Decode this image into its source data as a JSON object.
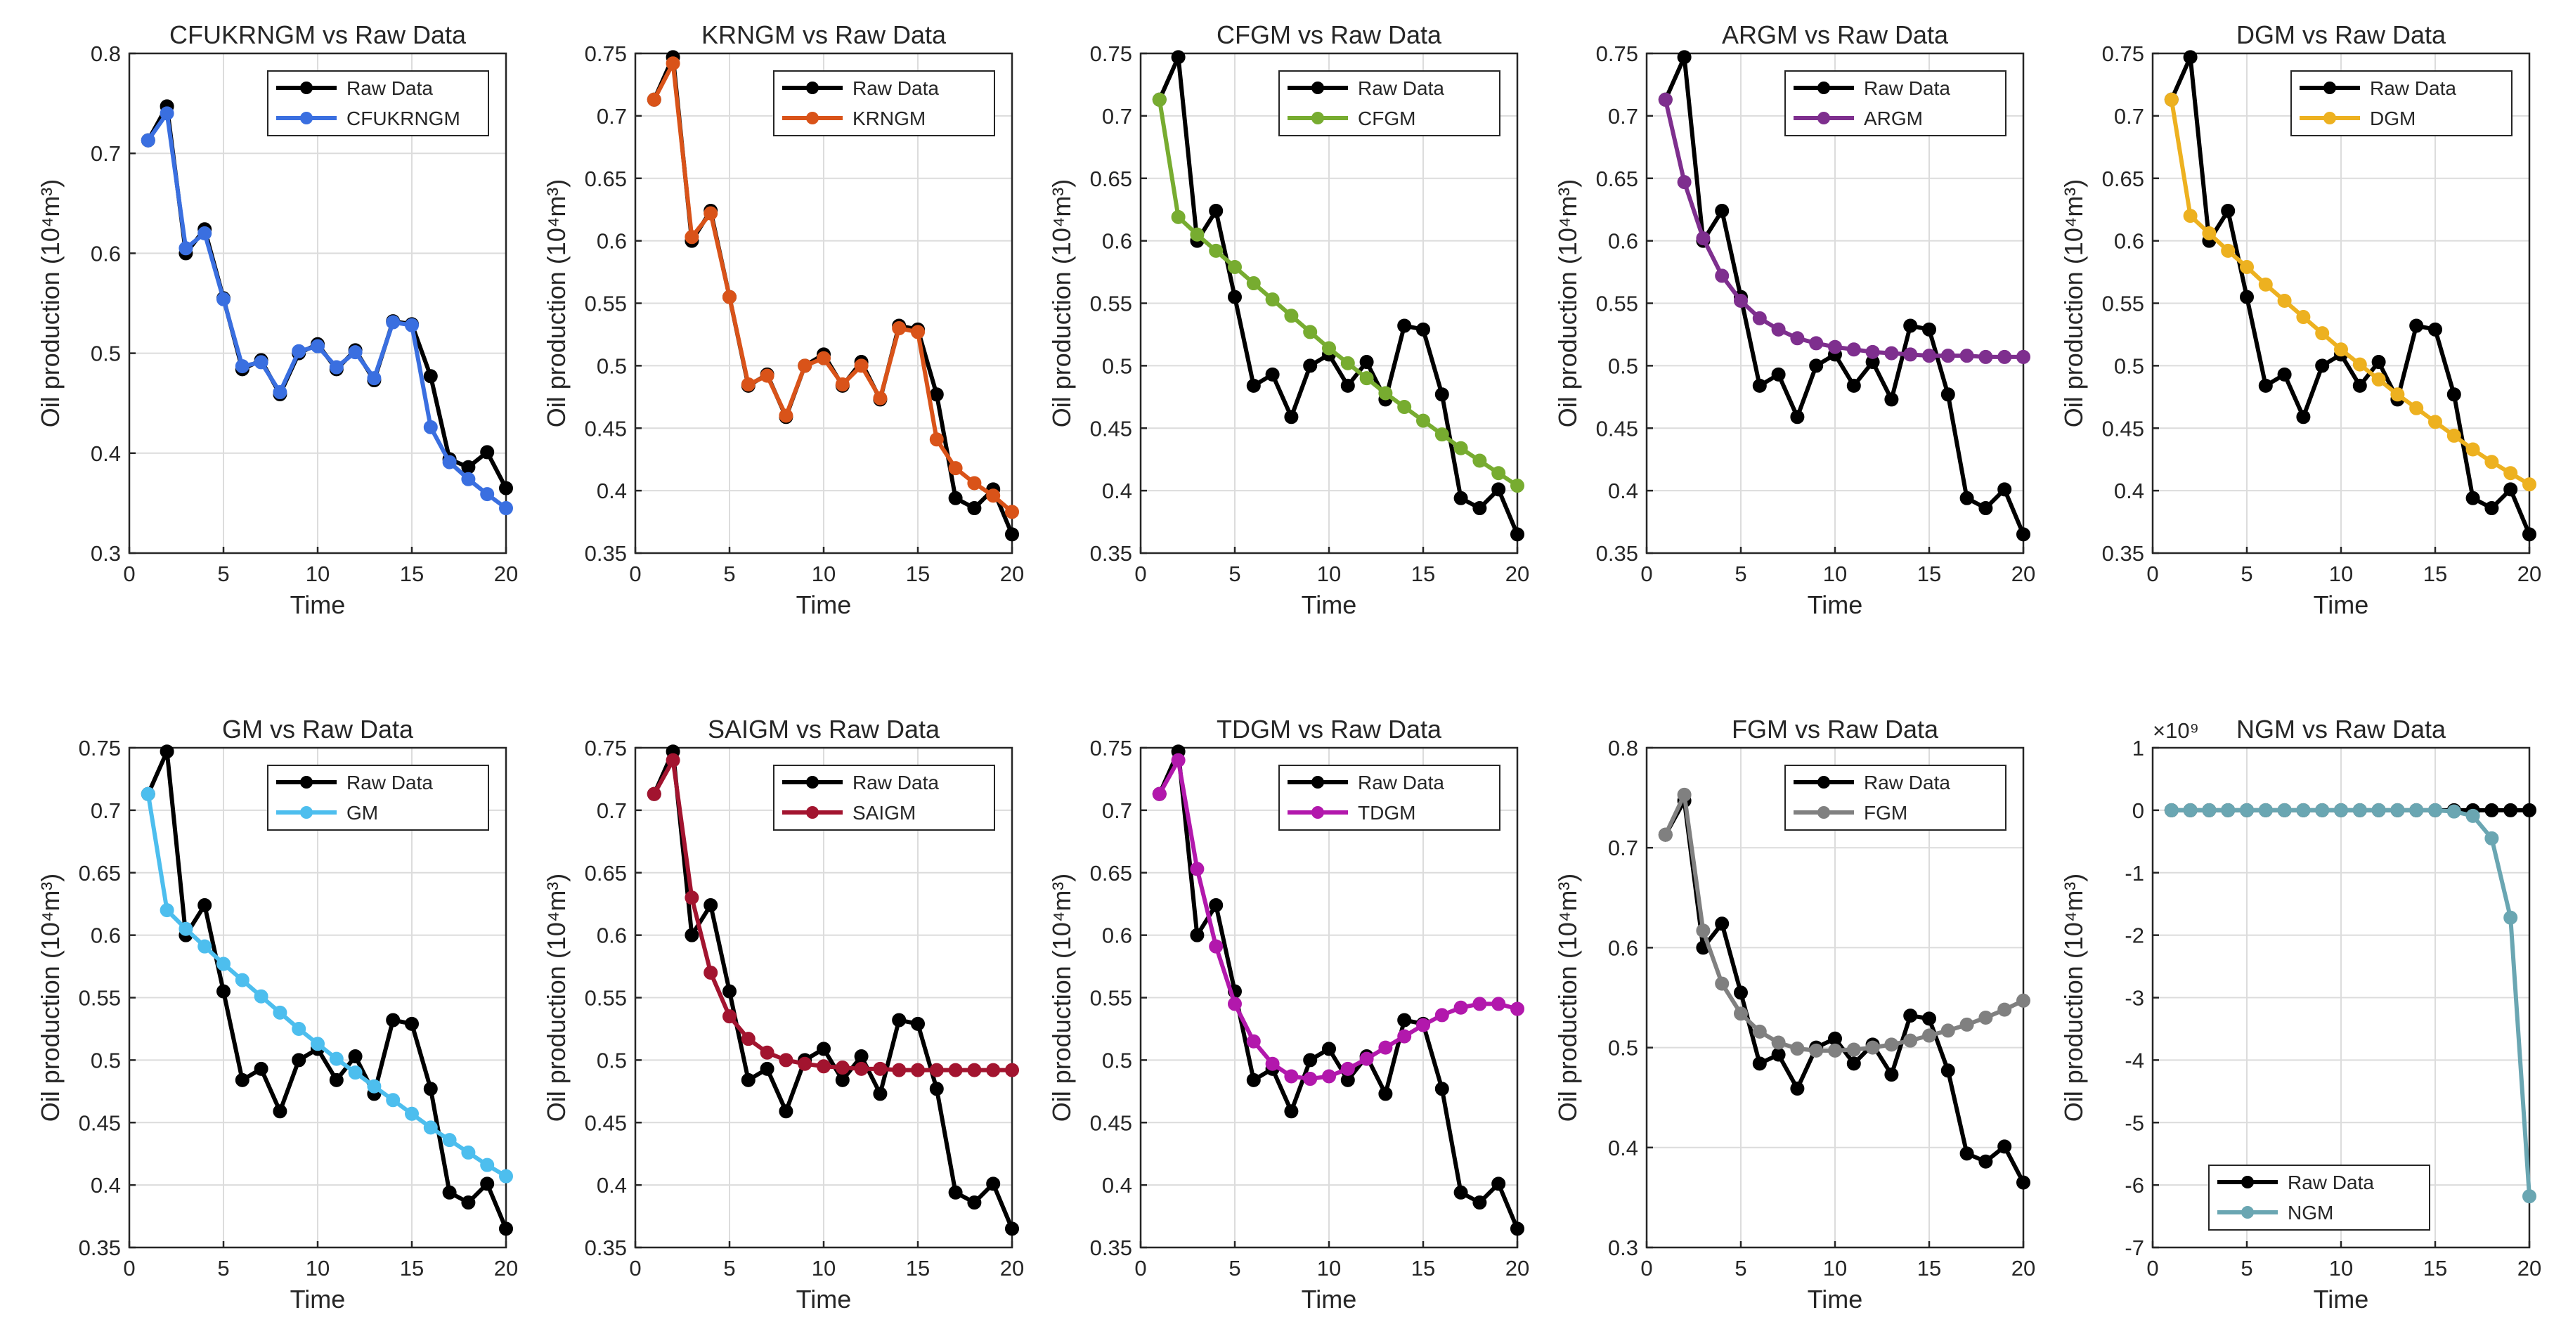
{
  "figure": {
    "background": "#ffffff",
    "raw_color": "#000000"
  },
  "chart_data": [
    {
      "type": "line",
      "title": "CFUKRNGM vs Raw Data",
      "xlabel": "Time",
      "ylabel": "Oil production  (10⁴m³)",
      "xlim": [
        0,
        20
      ],
      "ylim": [
        0.3,
        0.8
      ],
      "xticks": [
        "0",
        "5",
        "10",
        "15",
        "20"
      ],
      "yticks": [
        "0.3",
        "0.4",
        "0.5",
        "0.6",
        "0.7",
        "0.8"
      ],
      "legend_loc": "top-right",
      "x": [
        1,
        2,
        3,
        4,
        5,
        6,
        7,
        8,
        9,
        10,
        11,
        12,
        13,
        14,
        15,
        16,
        17,
        18,
        19,
        20
      ],
      "series": [
        {
          "name": "Raw Data",
          "color": "#000000",
          "values": [
            0.713,
            0.747,
            0.6,
            0.624,
            0.555,
            0.484,
            0.493,
            0.459,
            0.5,
            0.509,
            0.484,
            0.503,
            0.473,
            0.532,
            0.529,
            0.477,
            0.394,
            0.386,
            0.401,
            0.365
          ]
        },
        {
          "name": "CFUKRNGM",
          "color": "#3a6fe0",
          "values": [
            0.713,
            0.74,
            0.605,
            0.62,
            0.554,
            0.487,
            0.491,
            0.461,
            0.502,
            0.507,
            0.486,
            0.501,
            0.475,
            0.531,
            0.528,
            0.426,
            0.391,
            0.374,
            0.359,
            0.345
          ]
        }
      ]
    },
    {
      "type": "line",
      "title": "KRNGM vs Raw Data",
      "xlabel": "Time",
      "ylabel": "Oil production  (10⁴m³)",
      "xlim": [
        0,
        20
      ],
      "ylim": [
        0.35,
        0.75
      ],
      "xticks": [
        "0",
        "5",
        "10",
        "15",
        "20"
      ],
      "yticks": [
        "0.35",
        "0.4",
        "0.45",
        "0.5",
        "0.55",
        "0.6",
        "0.65",
        "0.7",
        "0.75"
      ],
      "legend_loc": "top-right",
      "x": [
        1,
        2,
        3,
        4,
        5,
        6,
        7,
        8,
        9,
        10,
        11,
        12,
        13,
        14,
        15,
        16,
        17,
        18,
        19,
        20
      ],
      "series": [
        {
          "name": "Raw Data",
          "color": "#000000",
          "values": [
            0.713,
            0.747,
            0.6,
            0.624,
            0.555,
            0.484,
            0.493,
            0.459,
            0.5,
            0.509,
            0.484,
            0.503,
            0.473,
            0.532,
            0.529,
            0.477,
            0.394,
            0.386,
            0.401,
            0.365
          ]
        },
        {
          "name": "KRNGM",
          "color": "#d95319",
          "values": [
            0.713,
            0.742,
            0.603,
            0.622,
            0.555,
            0.485,
            0.492,
            0.46,
            0.5,
            0.506,
            0.485,
            0.5,
            0.474,
            0.53,
            0.527,
            0.441,
            0.418,
            0.406,
            0.396,
            0.383
          ]
        }
      ]
    },
    {
      "type": "line",
      "title": "CFGM vs Raw Data",
      "xlabel": "Time",
      "ylabel": "Oil production  (10⁴m³)",
      "xlim": [
        0,
        20
      ],
      "ylim": [
        0.35,
        0.75
      ],
      "xticks": [
        "0",
        "5",
        "10",
        "15",
        "20"
      ],
      "yticks": [
        "0.35",
        "0.4",
        "0.45",
        "0.5",
        "0.55",
        "0.6",
        "0.65",
        "0.7",
        "0.75"
      ],
      "legend_loc": "top-right",
      "x": [
        1,
        2,
        3,
        4,
        5,
        6,
        7,
        8,
        9,
        10,
        11,
        12,
        13,
        14,
        15,
        16,
        17,
        18,
        19,
        20
      ],
      "series": [
        {
          "name": "Raw Data",
          "color": "#000000",
          "values": [
            0.713,
            0.747,
            0.6,
            0.624,
            0.555,
            0.484,
            0.493,
            0.459,
            0.5,
            0.509,
            0.484,
            0.503,
            0.473,
            0.532,
            0.529,
            0.477,
            0.394,
            0.386,
            0.401,
            0.365
          ]
        },
        {
          "name": "CFGM",
          "color": "#77ac30",
          "values": [
            0.713,
            0.619,
            0.605,
            0.592,
            0.579,
            0.566,
            0.553,
            0.54,
            0.527,
            0.514,
            0.502,
            0.49,
            0.478,
            0.467,
            0.456,
            0.445,
            0.434,
            0.424,
            0.414,
            0.404
          ]
        }
      ]
    },
    {
      "type": "line",
      "title": "ARGM vs Raw Data",
      "xlabel": "Time",
      "ylabel": "Oil production  (10⁴m³)",
      "xlim": [
        0,
        20
      ],
      "ylim": [
        0.35,
        0.75
      ],
      "xticks": [
        "0",
        "5",
        "10",
        "15",
        "20"
      ],
      "yticks": [
        "0.35",
        "0.4",
        "0.45",
        "0.5",
        "0.55",
        "0.6",
        "0.65",
        "0.7",
        "0.75"
      ],
      "legend_loc": "top-right",
      "x": [
        1,
        2,
        3,
        4,
        5,
        6,
        7,
        8,
        9,
        10,
        11,
        12,
        13,
        14,
        15,
        16,
        17,
        18,
        19,
        20
      ],
      "series": [
        {
          "name": "Raw Data",
          "color": "#000000",
          "values": [
            0.713,
            0.747,
            0.6,
            0.624,
            0.555,
            0.484,
            0.493,
            0.459,
            0.5,
            0.509,
            0.484,
            0.503,
            0.473,
            0.532,
            0.529,
            0.477,
            0.394,
            0.386,
            0.401,
            0.365
          ]
        },
        {
          "name": "ARGM",
          "color": "#7e2f8e",
          "values": [
            0.713,
            0.647,
            0.602,
            0.572,
            0.552,
            0.538,
            0.529,
            0.522,
            0.518,
            0.515,
            0.513,
            0.511,
            0.51,
            0.509,
            0.508,
            0.508,
            0.508,
            0.507,
            0.507,
            0.507
          ]
        }
      ]
    },
    {
      "type": "line",
      "title": "DGM vs Raw Data",
      "xlabel": "Time",
      "ylabel": "Oil production  (10⁴m³)",
      "xlim": [
        0,
        20
      ],
      "ylim": [
        0.35,
        0.75
      ],
      "xticks": [
        "0",
        "5",
        "10",
        "15",
        "20"
      ],
      "yticks": [
        "0.35",
        "0.4",
        "0.45",
        "0.5",
        "0.55",
        "0.6",
        "0.65",
        "0.7",
        "0.75"
      ],
      "legend_loc": "top-right",
      "x": [
        1,
        2,
        3,
        4,
        5,
        6,
        7,
        8,
        9,
        10,
        11,
        12,
        13,
        14,
        15,
        16,
        17,
        18,
        19,
        20
      ],
      "series": [
        {
          "name": "Raw Data",
          "color": "#000000",
          "values": [
            0.713,
            0.747,
            0.6,
            0.624,
            0.555,
            0.484,
            0.493,
            0.459,
            0.5,
            0.509,
            0.484,
            0.503,
            0.473,
            0.532,
            0.529,
            0.477,
            0.394,
            0.386,
            0.401,
            0.365
          ]
        },
        {
          "name": "DGM",
          "color": "#edb120",
          "values": [
            0.713,
            0.62,
            0.606,
            0.592,
            0.579,
            0.565,
            0.552,
            0.539,
            0.526,
            0.513,
            0.501,
            0.489,
            0.477,
            0.466,
            0.455,
            0.444,
            0.433,
            0.423,
            0.414,
            0.405
          ]
        }
      ]
    },
    {
      "type": "line",
      "title": "GM vs Raw Data",
      "xlabel": "Time",
      "ylabel": "Oil production  (10⁴m³)",
      "xlim": [
        0,
        20
      ],
      "ylim": [
        0.35,
        0.75
      ],
      "xticks": [
        "0",
        "5",
        "10",
        "15",
        "20"
      ],
      "yticks": [
        "0.35",
        "0.4",
        "0.45",
        "0.5",
        "0.55",
        "0.6",
        "0.65",
        "0.7",
        "0.75"
      ],
      "legend_loc": "top-right",
      "x": [
        1,
        2,
        3,
        4,
        5,
        6,
        7,
        8,
        9,
        10,
        11,
        12,
        13,
        14,
        15,
        16,
        17,
        18,
        19,
        20
      ],
      "series": [
        {
          "name": "Raw Data",
          "color": "#000000",
          "values": [
            0.713,
            0.747,
            0.6,
            0.624,
            0.555,
            0.484,
            0.493,
            0.459,
            0.5,
            0.509,
            0.484,
            0.503,
            0.473,
            0.532,
            0.529,
            0.477,
            0.394,
            0.386,
            0.401,
            0.365
          ]
        },
        {
          "name": "GM",
          "color": "#4dbeee",
          "values": [
            0.713,
            0.62,
            0.605,
            0.591,
            0.577,
            0.564,
            0.551,
            0.538,
            0.525,
            0.513,
            0.501,
            0.49,
            0.479,
            0.468,
            0.457,
            0.446,
            0.436,
            0.426,
            0.416,
            0.407
          ]
        }
      ]
    },
    {
      "type": "line",
      "title": "SAIGM vs Raw Data",
      "xlabel": "Time",
      "ylabel": "Oil production  (10⁴m³)",
      "xlim": [
        0,
        20
      ],
      "ylim": [
        0.35,
        0.75
      ],
      "xticks": [
        "0",
        "5",
        "10",
        "15",
        "20"
      ],
      "yticks": [
        "0.35",
        "0.4",
        "0.45",
        "0.5",
        "0.55",
        "0.6",
        "0.65",
        "0.7",
        "0.75"
      ],
      "legend_loc": "top-right",
      "x": [
        1,
        2,
        3,
        4,
        5,
        6,
        7,
        8,
        9,
        10,
        11,
        12,
        13,
        14,
        15,
        16,
        17,
        18,
        19,
        20
      ],
      "series": [
        {
          "name": "Raw Data",
          "color": "#000000",
          "values": [
            0.713,
            0.747,
            0.6,
            0.624,
            0.555,
            0.484,
            0.493,
            0.459,
            0.5,
            0.509,
            0.484,
            0.503,
            0.473,
            0.532,
            0.529,
            0.477,
            0.394,
            0.386,
            0.401,
            0.365
          ]
        },
        {
          "name": "SAIGM",
          "color": "#a2142f",
          "values": [
            0.713,
            0.74,
            0.63,
            0.57,
            0.535,
            0.517,
            0.506,
            0.5,
            0.497,
            0.495,
            0.494,
            0.493,
            0.493,
            0.492,
            0.492,
            0.492,
            0.492,
            0.492,
            0.492,
            0.492
          ]
        }
      ]
    },
    {
      "type": "line",
      "title": "TDGM vs Raw Data",
      "xlabel": "Time",
      "ylabel": "Oil production  (10⁴m³)",
      "xlim": [
        0,
        20
      ],
      "ylim": [
        0.35,
        0.75
      ],
      "xticks": [
        "0",
        "5",
        "10",
        "15",
        "20"
      ],
      "yticks": [
        "0.35",
        "0.4",
        "0.45",
        "0.5",
        "0.55",
        "0.6",
        "0.65",
        "0.7",
        "0.75"
      ],
      "legend_loc": "top-right",
      "x": [
        1,
        2,
        3,
        4,
        5,
        6,
        7,
        8,
        9,
        10,
        11,
        12,
        13,
        14,
        15,
        16,
        17,
        18,
        19,
        20
      ],
      "series": [
        {
          "name": "Raw Data",
          "color": "#000000",
          "values": [
            0.713,
            0.747,
            0.6,
            0.624,
            0.555,
            0.484,
            0.493,
            0.459,
            0.5,
            0.509,
            0.484,
            0.503,
            0.473,
            0.532,
            0.529,
            0.477,
            0.394,
            0.386,
            0.401,
            0.365
          ]
        },
        {
          "name": "TDGM",
          "color": "#b218ac",
          "values": [
            0.713,
            0.74,
            0.653,
            0.591,
            0.545,
            0.515,
            0.497,
            0.487,
            0.485,
            0.487,
            0.493,
            0.501,
            0.51,
            0.519,
            0.528,
            0.536,
            0.542,
            0.545,
            0.545,
            0.541
          ]
        }
      ]
    },
    {
      "type": "line",
      "title": "FGM vs Raw Data",
      "xlabel": "Time",
      "ylabel": "Oil production  (10⁴m³)",
      "xlim": [
        0,
        20
      ],
      "ylim": [
        0.3,
        0.8
      ],
      "xticks": [
        "0",
        "5",
        "10",
        "15",
        "20"
      ],
      "yticks": [
        "0.3",
        "0.4",
        "0.5",
        "0.6",
        "0.7",
        "0.8"
      ],
      "legend_loc": "top-right",
      "x": [
        1,
        2,
        3,
        4,
        5,
        6,
        7,
        8,
        9,
        10,
        11,
        12,
        13,
        14,
        15,
        16,
        17,
        18,
        19,
        20
      ],
      "series": [
        {
          "name": "Raw Data",
          "color": "#000000",
          "values": [
            0.713,
            0.747,
            0.6,
            0.624,
            0.555,
            0.484,
            0.493,
            0.459,
            0.5,
            0.509,
            0.484,
            0.503,
            0.473,
            0.532,
            0.529,
            0.477,
            0.394,
            0.386,
            0.401,
            0.365
          ]
        },
        {
          "name": "FGM",
          "color": "#808080",
          "values": [
            0.713,
            0.753,
            0.617,
            0.564,
            0.534,
            0.516,
            0.505,
            0.499,
            0.497,
            0.497,
            0.498,
            0.5,
            0.503,
            0.507,
            0.512,
            0.517,
            0.523,
            0.53,
            0.538,
            0.547
          ]
        }
      ]
    },
    {
      "type": "line",
      "title": "NGM vs Raw Data",
      "xlabel": "Time",
      "ylabel": "Oil production  (10⁴m³)",
      "xlim": [
        0,
        20
      ],
      "ylim": [
        -7,
        1
      ],
      "exponent": "×10⁹",
      "xticks": [
        "0",
        "5",
        "10",
        "15",
        "20"
      ],
      "yticks": [
        "-7",
        "-6",
        "-5",
        "-4",
        "-3",
        "-2",
        "-1",
        "0",
        "1"
      ],
      "legend_loc": "bottom-left",
      "x": [
        1,
        2,
        3,
        4,
        5,
        6,
        7,
        8,
        9,
        10,
        11,
        12,
        13,
        14,
        15,
        16,
        17,
        18,
        19,
        20
      ],
      "series": [
        {
          "name": "Raw Data",
          "color": "#000000",
          "values": [
            0,
            0,
            0,
            0,
            0,
            0,
            0,
            0,
            0,
            0,
            0,
            0,
            0,
            0,
            0,
            0,
            0,
            0,
            0,
            0
          ]
        },
        {
          "name": "NGM",
          "color": "#6aa6b2",
          "values": [
            0,
            0,
            0,
            0,
            0,
            0,
            0,
            0,
            0,
            0,
            0,
            0,
            0,
            0,
            0,
            -0.02,
            -0.09,
            -0.45,
            -1.72,
            -6.18
          ]
        }
      ]
    }
  ]
}
